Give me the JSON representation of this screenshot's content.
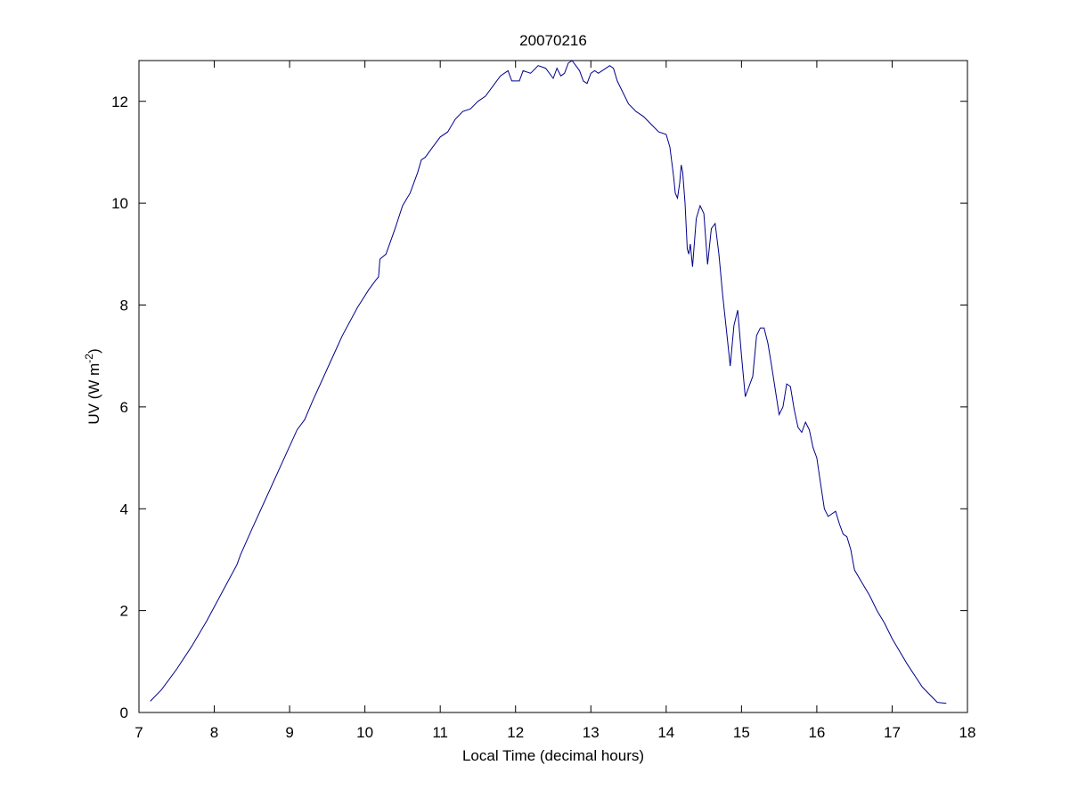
{
  "figure": {
    "background": "#ffffff",
    "axes_color": "#000000"
  },
  "chart_data": {
    "type": "line",
    "title": "20070216",
    "xlabel": "Local Time (decimal hours)",
    "ylabel": {
      "main": "UV (W m",
      "superscript": "-2",
      "close": ")"
    },
    "xlim": [
      7,
      18
    ],
    "ylim": [
      0,
      12.8
    ],
    "xticks": [
      7,
      8,
      9,
      10,
      11,
      12,
      13,
      14,
      15,
      16,
      17,
      18
    ],
    "yticks": [
      0,
      2,
      4,
      6,
      8,
      10,
      12
    ],
    "grid": false,
    "box": true,
    "series": [
      {
        "color": "#00008b",
        "x": [
          7.15,
          7.3,
          7.5,
          7.7,
          7.9,
          8.1,
          8.3,
          8.35,
          8.5,
          8.7,
          8.9,
          9.1,
          9.2,
          9.3,
          9.5,
          9.7,
          9.9,
          10.05,
          10.15,
          10.18,
          10.2,
          10.28,
          10.4,
          10.5,
          10.6,
          10.7,
          10.75,
          10.8,
          10.9,
          11.0,
          11.1,
          11.2,
          11.3,
          11.4,
          11.5,
          11.6,
          11.7,
          11.8,
          11.9,
          11.95,
          12.05,
          12.1,
          12.2,
          12.3,
          12.4,
          12.5,
          12.55,
          12.6,
          12.65,
          12.7,
          12.75,
          12.8,
          12.85,
          12.9,
          12.95,
          13.0,
          13.05,
          13.1,
          13.2,
          13.25,
          13.3,
          13.35,
          13.4,
          13.5,
          13.6,
          13.7,
          13.8,
          13.9,
          14.0,
          14.05,
          14.1,
          14.12,
          14.15,
          14.18,
          14.2,
          14.22,
          14.25,
          14.28,
          14.3,
          14.32,
          14.35,
          14.4,
          14.45,
          14.5,
          14.55,
          14.6,
          14.65,
          14.7,
          14.75,
          14.8,
          14.85,
          14.9,
          14.95,
          15.0,
          15.05,
          15.1,
          15.15,
          15.2,
          15.25,
          15.3,
          15.35,
          15.4,
          15.5,
          15.55,
          15.6,
          15.65,
          15.7,
          15.75,
          15.8,
          15.85,
          15.9,
          15.95,
          16.0,
          16.05,
          16.1,
          16.15,
          16.2,
          16.25,
          16.3,
          16.35,
          16.4,
          16.45,
          16.5,
          16.6,
          16.7,
          16.8,
          16.9,
          17.0,
          17.2,
          17.4,
          17.6,
          17.72
        ],
        "values": [
          0.22,
          0.45,
          0.85,
          1.3,
          1.8,
          2.35,
          2.9,
          3.1,
          3.6,
          4.25,
          4.9,
          5.55,
          5.75,
          6.1,
          6.75,
          7.4,
          7.95,
          8.3,
          8.5,
          8.55,
          8.9,
          9.0,
          9.5,
          9.95,
          10.2,
          10.6,
          10.85,
          10.9,
          11.1,
          11.3,
          11.4,
          11.65,
          11.8,
          11.85,
          12.0,
          12.1,
          12.3,
          12.5,
          12.6,
          12.4,
          12.4,
          12.6,
          12.55,
          12.7,
          12.65,
          12.45,
          12.65,
          12.5,
          12.55,
          12.75,
          12.8,
          12.7,
          12.6,
          12.4,
          12.35,
          12.55,
          12.6,
          12.55,
          12.65,
          12.7,
          12.65,
          12.4,
          12.25,
          11.95,
          11.8,
          11.7,
          11.55,
          11.4,
          11.35,
          11.1,
          10.5,
          10.2,
          10.1,
          10.4,
          10.75,
          10.6,
          10.0,
          9.1,
          9.0,
          9.2,
          8.75,
          9.7,
          9.95,
          9.8,
          8.8,
          9.5,
          9.6,
          9.0,
          8.2,
          7.5,
          6.8,
          7.6,
          7.9,
          7.0,
          6.2,
          6.4,
          6.6,
          7.4,
          7.55,
          7.55,
          7.25,
          6.8,
          5.85,
          6.0,
          6.45,
          6.4,
          5.95,
          5.6,
          5.5,
          5.7,
          5.55,
          5.2,
          5.0,
          4.5,
          4.0,
          3.85,
          3.9,
          3.95,
          3.7,
          3.5,
          3.45,
          3.2,
          2.8,
          2.55,
          2.3,
          2.0,
          1.75,
          1.45,
          0.95,
          0.5,
          0.2,
          0.18
        ]
      }
    ]
  }
}
